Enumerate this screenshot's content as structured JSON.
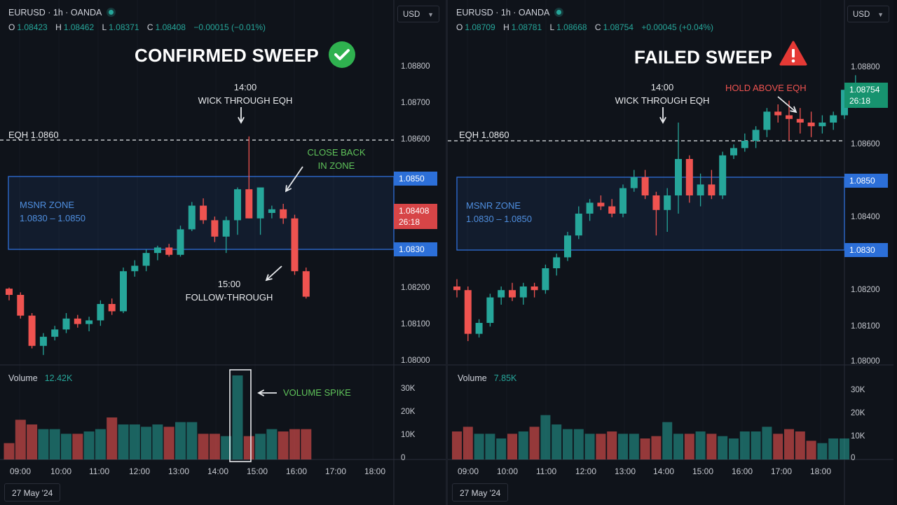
{
  "left": {
    "symbol": "EURUSD · 1h · OANDA",
    "ohlc": {
      "o": "1.08423",
      "h": "1.08462",
      "l": "1.08371",
      "c": "1.08408",
      "chg": "−0.00015 (−0.01%)"
    },
    "currency": "USD",
    "title": "CONFIRMED SWEEP",
    "eqh_label": "EQH 1.0860",
    "zone_title": "MSNR ZONE",
    "zone_range": "1.0830 – 1.0850",
    "ann_wick": [
      "14:00",
      "WICK THROUGH EQH"
    ],
    "ann_close": [
      "CLOSE BACK",
      "IN ZONE"
    ],
    "ann_follow": [
      "15:00",
      "FOLLOW-THROUGH"
    ],
    "ann_volume": "VOLUME SPIKE",
    "tag_upper": "1.0850",
    "tag_lower": "1.0830",
    "tag_price": [
      "1.08408",
      "26:18"
    ],
    "volume_label": "Volume",
    "volume_value": "12.42K",
    "date": "27 May '24"
  },
  "right": {
    "symbol": "EURUSD · 1h · OANDA",
    "ohlc": {
      "o": "1.08709",
      "h": "1.08781",
      "l": "1.08668",
      "c": "1.08754",
      "chg": "+0.00045 (+0.04%)"
    },
    "currency": "USD",
    "title": "FAILED SWEEP",
    "eqh_label": "EQH 1.0860",
    "zone_title": "MSNR ZONE",
    "zone_range": "1.0830 – 1.0850",
    "ann_wick": [
      "14:00",
      "WICK THROUGH EQH"
    ],
    "ann_hold": "HOLD ABOVE EQH",
    "tag_upper": "1.0850",
    "tag_lower": "1.0830",
    "tag_price": [
      "1.08754",
      "26:18"
    ],
    "volume_label": "Volume",
    "volume_value": "7.85K",
    "date": "27 May '24"
  },
  "y_ticks": [
    "1.08800",
    "1.08700",
    "1.08600",
    "1.08400",
    "1.08200",
    "1.08100",
    "1.08000"
  ],
  "vol_ticks": [
    "30K",
    "20K",
    "10K",
    "0"
  ],
  "x_ticks": [
    "09:00",
    "10:00",
    "11:00",
    "12:00",
    "13:00",
    "14:00",
    "15:00",
    "16:00",
    "17:00",
    "18:00"
  ],
  "colors": {
    "up": "#26a69a",
    "down": "#ef5350",
    "zone": "#2f6fd8",
    "bg": "#0f131a"
  },
  "chart_data": [
    {
      "type": "candlestick",
      "title": "CONFIRMED SWEEP",
      "candles_ohlc": [
        [
          1.08192,
          1.08195,
          1.0816,
          1.08175
        ],
        [
          1.08175,
          1.08182,
          1.0811,
          1.08118
        ],
        [
          1.08118,
          1.08125,
          1.08028,
          1.08035
        ],
        [
          1.08035,
          1.0807,
          1.0801,
          1.0806
        ],
        [
          1.0806,
          1.0809,
          1.0805,
          1.0808
        ],
        [
          1.0808,
          1.08125,
          1.0807,
          1.0811
        ],
        [
          1.0811,
          1.0812,
          1.08085,
          1.08095
        ],
        [
          1.08095,
          1.08115,
          1.08075,
          1.08105
        ],
        [
          1.08105,
          1.0816,
          1.0809,
          1.0815
        ],
        [
          1.0815,
          1.08165,
          1.0812,
          1.0813
        ],
        [
          1.0813,
          1.0825,
          1.08125,
          1.0824
        ],
        [
          1.0824,
          1.0827,
          1.08225,
          1.08255
        ],
        [
          1.08255,
          1.083,
          1.0824,
          1.0829
        ],
        [
          1.0829,
          1.0831,
          1.0827,
          1.08305
        ],
        [
          1.08305,
          1.08315,
          1.0828,
          1.08285
        ],
        [
          1.08285,
          1.08365,
          1.0828,
          1.08355
        ],
        [
          1.08355,
          1.0843,
          1.0835,
          1.0842
        ],
        [
          1.0842,
          1.0844,
          1.0837,
          1.0838
        ],
        [
          1.0838,
          1.0839,
          1.0832,
          1.08335
        ],
        [
          1.08335,
          1.0839,
          1.0829,
          1.0838
        ],
        [
          1.0838,
          1.0847,
          1.0834,
          1.08465
        ],
        [
          1.08465,
          1.0861,
          1.08385,
          1.08385
        ],
        [
          1.08385,
          1.0842,
          1.0834,
          1.0847
        ],
        [
          1.084,
          1.0842,
          1.08385,
          1.0841
        ],
        [
          1.0841,
          1.08425,
          1.0837,
          1.08385
        ],
        [
          1.08385,
          1.08395,
          1.0823,
          1.0824
        ],
        [
          1.0824,
          1.0825,
          1.08165,
          1.0817
        ]
      ],
      "volume_k": [
        7,
        17,
        15,
        13,
        13,
        11,
        11,
        12,
        13,
        18,
        15,
        15,
        14,
        15,
        14,
        16,
        16,
        11,
        11,
        10,
        36,
        10,
        11,
        13,
        12,
        13,
        13
      ],
      "y_range": [
        1.08,
        1.089
      ],
      "eqh": 1.086,
      "zone": [
        1.083,
        1.085
      ]
    },
    {
      "type": "candlestick",
      "title": "FAILED SWEEP",
      "volume_k": [
        12,
        14,
        11,
        11,
        9,
        11,
        12,
        14,
        19,
        15,
        13,
        13,
        11,
        11,
        12,
        11,
        11,
        9,
        10,
        16,
        11,
        11,
        12,
        11,
        10,
        9,
        12,
        12,
        14,
        11,
        13,
        12,
        8,
        7,
        9,
        9
      ],
      "y_range": [
        1.08,
        1.089
      ],
      "eqh": 1.086,
      "zone": [
        1.083,
        1.085
      ]
    }
  ]
}
